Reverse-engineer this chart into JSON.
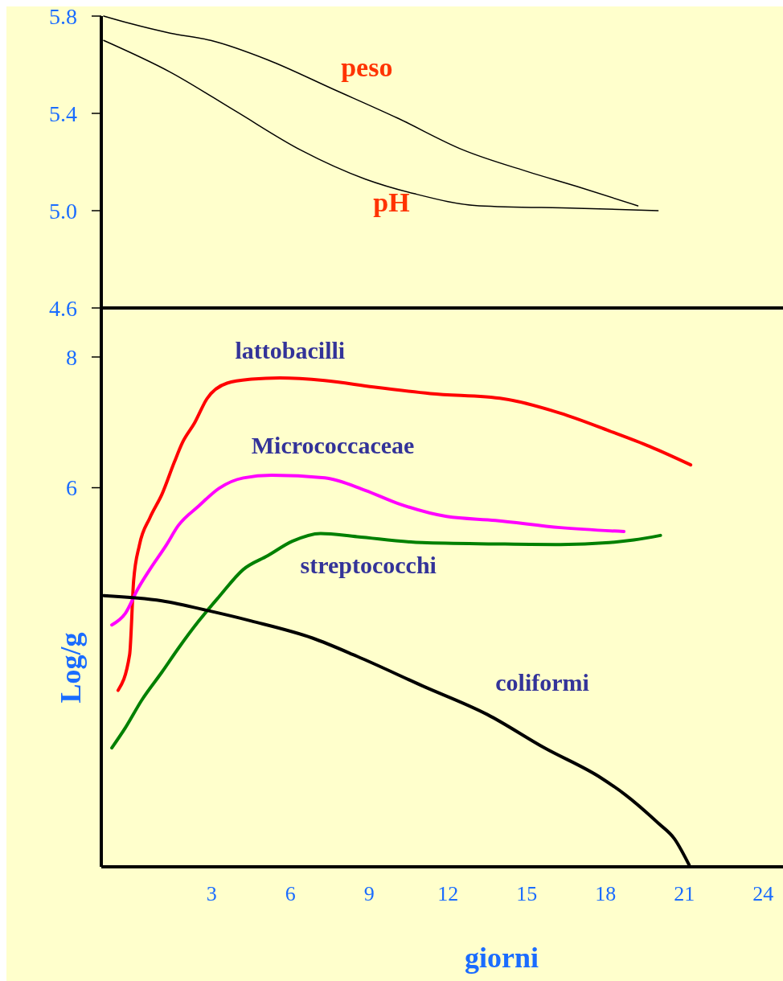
{
  "chart_data": [
    {
      "type": "line",
      "xlim": [
        -1.2,
        25
      ],
      "ylim": [
        4.6,
        5.8
      ],
      "yticks": [
        4.6,
        {
          "value": 5,
          "label": "5.0"
        },
        5.4,
        5.8
      ],
      "tick_labels": "y",
      "grid": false,
      "marker": "none",
      "line_style": "solid",
      "series": [
        {
          "name": "peso",
          "color": "#000000",
          "x": [
            -1.11,
            -0.12,
            1.42,
            2.97,
            5.14,
            7.62,
            10.09,
            12.57,
            15.05,
            16.9,
            19.23
          ],
          "values": [
            5.8,
            5.77,
            5.73,
            5.7,
            5.62,
            5.5,
            5.38,
            5.25,
            5.16,
            5.1,
            5.02
          ]
        },
        {
          "name": "pH",
          "color": "#000000",
          "x": [
            -1.11,
            1.42,
            3.9,
            6.38,
            8.85,
            10.71,
            13.19,
            16.9,
            20.0
          ],
          "values": [
            5.7,
            5.57,
            5.41,
            5.25,
            5.13,
            5.07,
            5.02,
            5.01,
            5.0
          ]
        }
      ]
    },
    {
      "type": "line",
      "xlabel": "giorni",
      "ylabel": "Log/g",
      "xlim": [
        -1.2,
        25
      ],
      "ylim": [
        0.2,
        8.75
      ],
      "xticks": [
        3,
        6,
        9,
        12,
        15,
        18,
        21,
        24
      ],
      "yticks": [
        6,
        8
      ],
      "grid": false,
      "marker": "none",
      "line_style": "solid",
      "series": [
        {
          "name": "lattobacilli",
          "color": "#ff0000",
          "x": [
            -0.56,
            -0.12,
            0.03,
            0.25,
            0.65,
            1.11,
            1.58,
            1.89,
            2.35,
            2.82,
            3.59,
            4.52,
            5.6,
            7.31,
            9.16,
            11.33,
            14.12,
            16.28,
            18.14,
            19.69,
            21.24
          ],
          "values": [
            2.9,
            3.45,
            4.57,
            5.12,
            5.54,
            5.9,
            6.39,
            6.69,
            6.99,
            7.36,
            7.6,
            7.66,
            7.68,
            7.64,
            7.54,
            7.44,
            7.36,
            7.14,
            6.87,
            6.63,
            6.35
          ]
        },
        {
          "name": "Micrococcaceae",
          "color": "#ff00ff",
          "x": [
            -0.8,
            -0.28,
            0.19,
            0.65,
            1.27,
            1.73,
            2.51,
            3.28,
            4.21,
            5.29,
            7.31,
            8.85,
            10.09,
            11.95,
            13.81,
            16.28,
            18.7
          ],
          "values": [
            3.9,
            4.08,
            4.45,
            4.75,
            5.12,
            5.42,
            5.72,
            5.99,
            6.15,
            6.19,
            6.15,
            5.96,
            5.76,
            5.56,
            5.5,
            5.39,
            5.33
          ]
        },
        {
          "name": "streptococchi",
          "color": "#008000",
          "x": [
            -0.8,
            -0.28,
            0.34,
            1.11,
            1.73,
            2.51,
            3.28,
            4.21,
            5.14,
            6.07,
            7.15,
            8.54,
            11.02,
            13.81,
            16.28,
            18.14,
            19.07,
            20.09
          ],
          "values": [
            2.02,
            2.33,
            2.75,
            3.18,
            3.54,
            3.96,
            4.33,
            4.75,
            4.96,
            5.18,
            5.3,
            5.25,
            5.16,
            5.14,
            5.13,
            5.16,
            5.2,
            5.27
          ]
        },
        {
          "name": "coliformi",
          "color": "#000000",
          "x": [
            -1.11,
            1.11,
            2.97,
            4.52,
            6.84,
            8.54,
            11.02,
            13.5,
            15.67,
            17.83,
            18.76,
            20.0,
            20.62,
            21.18
          ],
          "values": [
            4.35,
            4.27,
            4.11,
            3.96,
            3.7,
            3.42,
            2.97,
            2.53,
            2.02,
            1.56,
            1.3,
            0.87,
            0.63,
            0.23
          ]
        }
      ]
    }
  ]
}
